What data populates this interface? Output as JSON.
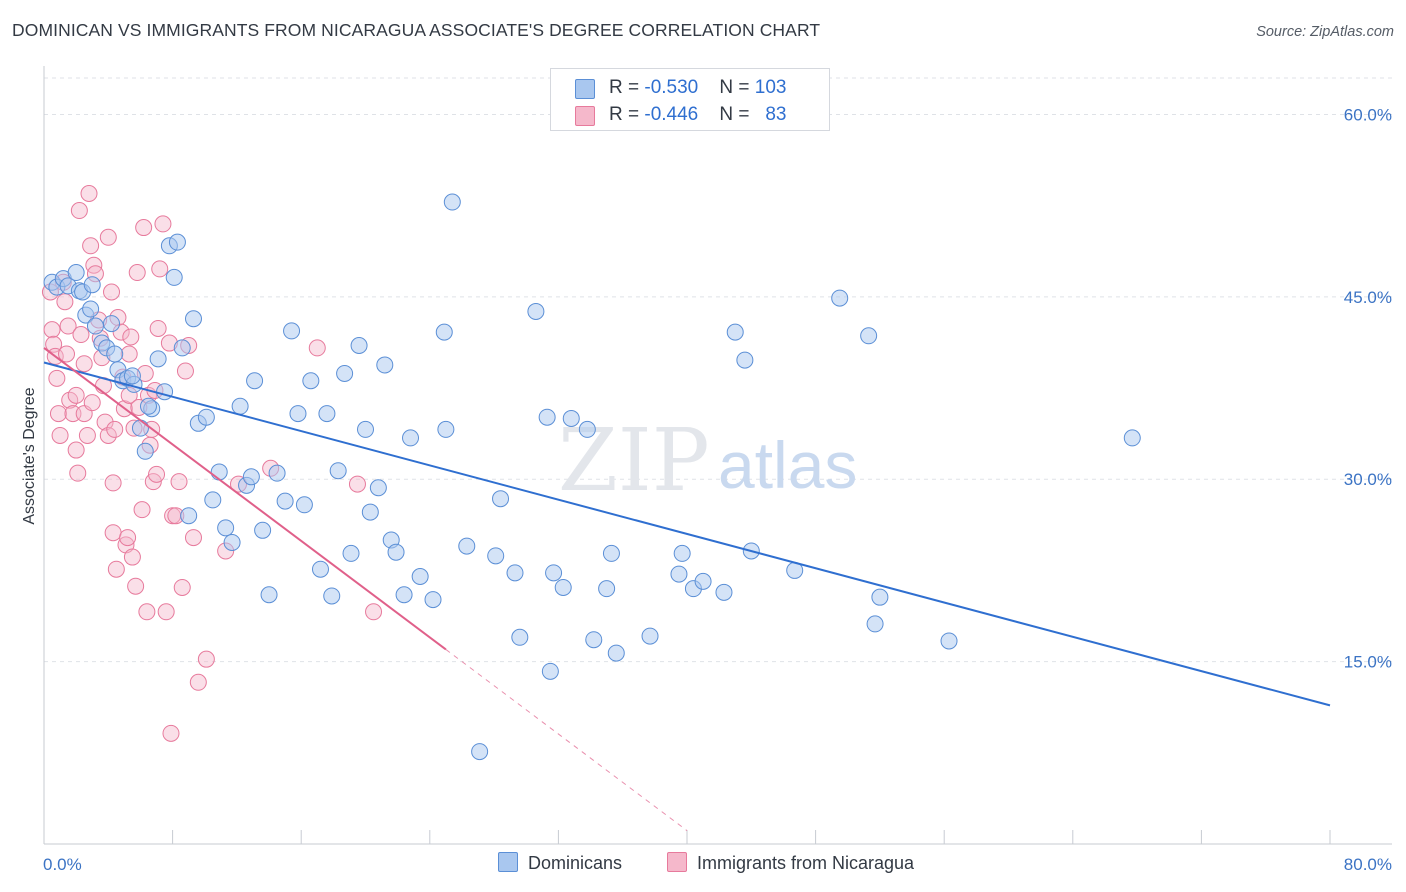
{
  "title": "DOMINICAN VS IMMIGRANTS FROM NICARAGUA ASSOCIATE'S DEGREE CORRELATION CHART",
  "source": "Source: ZipAtlas.com",
  "watermark": {
    "part1": "ZIP",
    "part2": "atlas"
  },
  "legend": {
    "rows": [
      {
        "r_label": "R = ",
        "r_value": "-0.530",
        "n_label": "N = ",
        "n_value": "103",
        "color": "#a9c7ef"
      },
      {
        "r_label": "R = ",
        "r_value": "-0.446",
        "n_label": "N = ",
        "n_value": "83",
        "color": "#f5b8cb"
      }
    ]
  },
  "bottom_legend": {
    "dominicans": "Dominicans",
    "nicaragua": "Immigrants from Nicaragua"
  },
  "colors": {
    "blue_fill": "#a9c7ef",
    "blue_stroke": "#5b8fd6",
    "blue_line": "#2f6fd0",
    "pink_fill": "#f5b8cb",
    "pink_stroke": "#e77a9c",
    "pink_line": "#e0608a",
    "grid": "#dfe2e7",
    "tick_text": "#3b73c4"
  },
  "chart_data": {
    "type": "scatter",
    "title": "DOMINICAN VS IMMIGRANTS FROM NICARAGUA ASSOCIATE'S DEGREE CORRELATION CHART",
    "xlabel": "",
    "ylabel": "Associate's Degree",
    "xlim": [
      0,
      80
    ],
    "ylim": [
      0,
      63
    ],
    "x_tick_labels": [
      "0.0%",
      "80.0%"
    ],
    "y_ticks": [
      15,
      30,
      45,
      60
    ],
    "y_tick_labels": [
      "15.0%",
      "30.0%",
      "45.0%",
      "60.0%"
    ],
    "grid": true,
    "series": [
      {
        "name": "Dominicans",
        "R": -0.53,
        "N": 103,
        "trend": {
          "x0": 0,
          "y0": 39.6,
          "x1": 80,
          "y1": 11.4
        },
        "points": [
          [
            0.5,
            46.2
          ],
          [
            0.8,
            45.8
          ],
          [
            1.2,
            46.5
          ],
          [
            1.5,
            45.9
          ],
          [
            2.0,
            47.0
          ],
          [
            2.2,
            45.5
          ],
          [
            2.6,
            43.5
          ],
          [
            2.9,
            44.0
          ],
          [
            3.2,
            42.6
          ],
          [
            3.6,
            41.2
          ],
          [
            3.9,
            40.8
          ],
          [
            4.4,
            40.3
          ],
          [
            4.6,
            39.0
          ],
          [
            4.9,
            38.1
          ],
          [
            5.2,
            38.3
          ],
          [
            5.6,
            37.8
          ],
          [
            6.0,
            34.2
          ],
          [
            6.3,
            32.3
          ],
          [
            6.7,
            35.8
          ],
          [
            7.1,
            39.9
          ],
          [
            7.5,
            37.2
          ],
          [
            7.8,
            49.2
          ],
          [
            8.1,
            46.6
          ],
          [
            8.6,
            40.8
          ],
          [
            9.0,
            27.0
          ],
          [
            9.3,
            43.2
          ],
          [
            9.6,
            34.6
          ],
          [
            10.1,
            35.1
          ],
          [
            10.5,
            28.3
          ],
          [
            10.9,
            30.6
          ],
          [
            11.3,
            26.0
          ],
          [
            11.7,
            24.8
          ],
          [
            12.2,
            36.0
          ],
          [
            12.6,
            29.5
          ],
          [
            13.1,
            38.1
          ],
          [
            13.6,
            25.8
          ],
          [
            14.0,
            20.5
          ],
          [
            14.5,
            30.5
          ],
          [
            15.0,
            28.2
          ],
          [
            15.4,
            42.2
          ],
          [
            15.8,
            35.4
          ],
          [
            16.2,
            27.9
          ],
          [
            16.6,
            38.1
          ],
          [
            17.2,
            22.6
          ],
          [
            17.6,
            35.4
          ],
          [
            17.9,
            20.4
          ],
          [
            18.3,
            30.7
          ],
          [
            18.7,
            38.7
          ],
          [
            19.1,
            23.9
          ],
          [
            19.6,
            41.0
          ],
          [
            20.0,
            34.1
          ],
          [
            20.3,
            27.3
          ],
          [
            20.8,
            29.3
          ],
          [
            21.2,
            39.4
          ],
          [
            21.6,
            25.0
          ],
          [
            21.9,
            24.0
          ],
          [
            22.4,
            20.5
          ],
          [
            22.8,
            33.4
          ],
          [
            23.4,
            22.0
          ],
          [
            24.2,
            20.1
          ],
          [
            24.9,
            42.1
          ],
          [
            25.0,
            34.1
          ],
          [
            25.4,
            52.8
          ],
          [
            26.3,
            24.5
          ],
          [
            27.1,
            7.6
          ],
          [
            28.1,
            23.7
          ],
          [
            28.4,
            28.4
          ],
          [
            29.3,
            22.3
          ],
          [
            29.6,
            17.0
          ],
          [
            30.6,
            43.8
          ],
          [
            31.3,
            35.1
          ],
          [
            31.5,
            14.2
          ],
          [
            31.7,
            22.3
          ],
          [
            32.3,
            21.1
          ],
          [
            32.8,
            35.0
          ],
          [
            33.8,
            34.1
          ],
          [
            34.2,
            16.8
          ],
          [
            35.0,
            21.0
          ],
          [
            35.3,
            23.9
          ],
          [
            35.6,
            15.7
          ],
          [
            37.7,
            17.1
          ],
          [
            39.5,
            22.2
          ],
          [
            39.7,
            23.9
          ],
          [
            40.4,
            21.0
          ],
          [
            41.0,
            21.6
          ],
          [
            42.3,
            20.7
          ],
          [
            43.0,
            42.1
          ],
          [
            43.6,
            39.8
          ],
          [
            44.0,
            24.1
          ],
          [
            46.7,
            22.5
          ],
          [
            49.5,
            44.9
          ],
          [
            51.3,
            41.8
          ],
          [
            51.7,
            18.1
          ],
          [
            52.0,
            20.3
          ],
          [
            56.3,
            16.7
          ],
          [
            67.7,
            33.4
          ],
          [
            2.4,
            45.4
          ],
          [
            3.0,
            46.0
          ],
          [
            4.2,
            42.8
          ],
          [
            5.5,
            38.5
          ],
          [
            8.3,
            49.5
          ],
          [
            6.5,
            36.0
          ],
          [
            12.9,
            30.2
          ]
        ]
      },
      {
        "name": "Immigrants from Nicaragua",
        "R": -0.446,
        "N": 83,
        "trend": {
          "x0": 0,
          "y0": 40.8,
          "x1": 25.0,
          "y1": 16.0,
          "dash_to": {
            "x": 40,
            "y": 1.1
          }
        },
        "points": [
          [
            0.4,
            45.4
          ],
          [
            0.5,
            42.3
          ],
          [
            0.6,
            41.1
          ],
          [
            0.7,
            40.1
          ],
          [
            0.8,
            38.3
          ],
          [
            0.9,
            35.4
          ],
          [
            1.0,
            33.6
          ],
          [
            1.2,
            46.2
          ],
          [
            1.3,
            44.6
          ],
          [
            1.5,
            42.6
          ],
          [
            1.6,
            36.5
          ],
          [
            1.8,
            35.4
          ],
          [
            2.0,
            36.9
          ],
          [
            2.0,
            32.4
          ],
          [
            2.2,
            52.1
          ],
          [
            2.3,
            41.9
          ],
          [
            2.5,
            39.5
          ],
          [
            2.5,
            35.4
          ],
          [
            2.7,
            33.6
          ],
          [
            2.8,
            53.5
          ],
          [
            2.9,
            49.2
          ],
          [
            3.1,
            47.6
          ],
          [
            3.2,
            46.9
          ],
          [
            3.4,
            43.1
          ],
          [
            3.5,
            41.6
          ],
          [
            3.7,
            37.7
          ],
          [
            3.8,
            34.7
          ],
          [
            4.0,
            33.6
          ],
          [
            4.0,
            49.9
          ],
          [
            4.2,
            45.4
          ],
          [
            4.3,
            29.7
          ],
          [
            4.3,
            25.6
          ],
          [
            4.4,
            34.1
          ],
          [
            4.5,
            22.6
          ],
          [
            4.6,
            43.3
          ],
          [
            4.8,
            42.1
          ],
          [
            4.9,
            38.4
          ],
          [
            5.0,
            35.8
          ],
          [
            5.1,
            24.6
          ],
          [
            5.2,
            25.2
          ],
          [
            5.3,
            36.9
          ],
          [
            5.4,
            41.7
          ],
          [
            5.5,
            23.6
          ],
          [
            5.6,
            34.2
          ],
          [
            5.7,
            21.2
          ],
          [
            5.8,
            47.0
          ],
          [
            5.9,
            35.9
          ],
          [
            6.1,
            27.5
          ],
          [
            6.2,
            50.7
          ],
          [
            6.3,
            38.7
          ],
          [
            6.4,
            19.1
          ],
          [
            6.5,
            36.9
          ],
          [
            6.6,
            32.8
          ],
          [
            6.7,
            34.1
          ],
          [
            6.8,
            29.8
          ],
          [
            7.0,
            30.4
          ],
          [
            7.1,
            42.4
          ],
          [
            7.2,
            47.3
          ],
          [
            7.4,
            51.0
          ],
          [
            7.6,
            19.1
          ],
          [
            7.8,
            41.2
          ],
          [
            7.9,
            9.1
          ],
          [
            8.0,
            27.0
          ],
          [
            8.2,
            27.0
          ],
          [
            8.4,
            29.8
          ],
          [
            8.6,
            21.1
          ],
          [
            8.8,
            38.9
          ],
          [
            9.0,
            41.0
          ],
          [
            9.3,
            25.2
          ],
          [
            9.6,
            13.3
          ],
          [
            10.1,
            15.2
          ],
          [
            11.3,
            24.1
          ],
          [
            12.1,
            29.6
          ],
          [
            14.1,
            30.9
          ],
          [
            17.0,
            40.8
          ],
          [
            19.5,
            29.6
          ],
          [
            20.5,
            19.1
          ],
          [
            3.6,
            40.0
          ],
          [
            2.1,
            30.5
          ],
          [
            1.4,
            40.3
          ],
          [
            6.9,
            37.3
          ],
          [
            5.3,
            40.3
          ],
          [
            3.0,
            36.3
          ]
        ]
      }
    ]
  }
}
